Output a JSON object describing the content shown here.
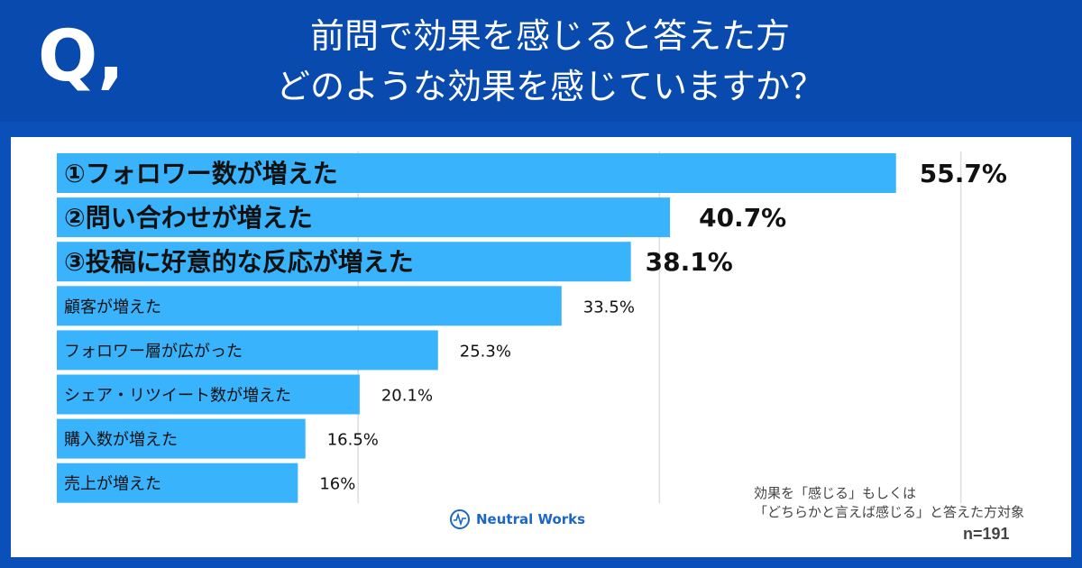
{
  "header": {
    "q_mark": "Q,",
    "title_line1": "前問で効果を感じると答えた方",
    "title_line2": "どのような効果を感じていますか？"
  },
  "chart_data": {
    "type": "bar",
    "orientation": "horizontal",
    "categories": [
      "①フォロワー数が増えた",
      "②問い合わせが増えた",
      "③投稿に好意的な反応が増えた",
      "顧客が増えた",
      "フォロワー層が広がった",
      "シェア・リツイート数が増えた",
      "購入数が増えた",
      "売上が増えた"
    ],
    "values": [
      55.7,
      40.7,
      38.1,
      33.5,
      25.3,
      20.1,
      16.5,
      16
    ],
    "labels": [
      "55.7%",
      "40.7%",
      "38.1%",
      "33.5%",
      "25.3%",
      "20.1%",
      "16.5%",
      "16%"
    ],
    "xlim": [
      0,
      60
    ],
    "grid": true,
    "bar_color": "#38b3fc"
  },
  "footer": {
    "note_line1": "効果を「感じる」もしくは",
    "note_line2": "「どちらかと言えば感じる」と答えた方対象",
    "n": "n=191",
    "logo": "Neutral Works"
  }
}
